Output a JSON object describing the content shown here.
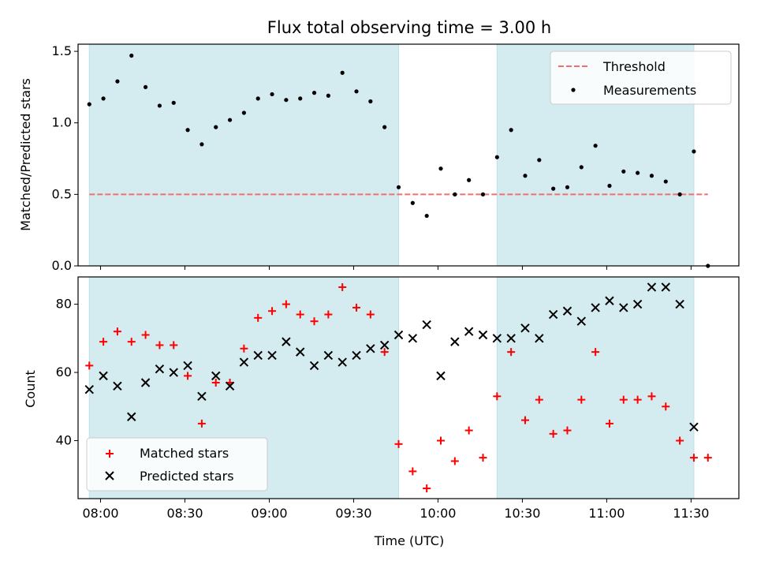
{
  "chart_data": [
    {
      "type": "scatter",
      "title": "Flux total observing time = 3.00 h",
      "xlabel": "",
      "ylabel": "Matched/Predicted stars",
      "xlim": [
        "07:52",
        "11:47"
      ],
      "ylim": [
        0,
        1.55
      ],
      "yticks": [
        "0.0",
        "0.5",
        "1.0",
        "1.5"
      ],
      "legend_position": "top-right",
      "shaded_intervals": [
        [
          "07:56",
          "09:46"
        ],
        [
          "10:21",
          "11:31"
        ]
      ],
      "shade_color": "#d4ebf0",
      "threshold": {
        "name": "Threshold",
        "value": 0.5,
        "x_range": [
          "07:56",
          "11:36"
        ],
        "color": "#f07070",
        "style": "dashed"
      },
      "series": [
        {
          "name": "Measurements",
          "color": "#000000",
          "marker": "dot",
          "x": [
            "07:56",
            "08:01",
            "08:06",
            "08:11",
            "08:16",
            "08:21",
            "08:26",
            "08:31",
            "08:36",
            "08:41",
            "08:46",
            "08:51",
            "08:56",
            "09:01",
            "09:06",
            "09:11",
            "09:16",
            "09:21",
            "09:26",
            "09:31",
            "09:36",
            "09:41",
            "09:46",
            "09:51",
            "09:56",
            "10:01",
            "10:06",
            "10:11",
            "10:16",
            "10:21",
            "10:26",
            "10:31",
            "10:36",
            "10:41",
            "10:46",
            "10:51",
            "10:56",
            "11:01",
            "11:06",
            "11:11",
            "11:16",
            "11:21",
            "11:26",
            "11:31",
            "11:36"
          ],
          "y": [
            1.13,
            1.17,
            1.29,
            1.47,
            1.25,
            1.12,
            1.14,
            0.95,
            0.85,
            0.97,
            1.02,
            1.07,
            1.17,
            1.2,
            1.16,
            1.17,
            1.21,
            1.19,
            1.35,
            1.22,
            1.15,
            0.97,
            0.55,
            0.44,
            0.35,
            0.68,
            0.5,
            0.6,
            0.5,
            0.76,
            0.95,
            0.63,
            0.74,
            0.54,
            0.55,
            0.69,
            0.84,
            0.56,
            0.66,
            0.65,
            0.63,
            0.59,
            0.5,
            0.8,
            0.0
          ]
        }
      ]
    },
    {
      "type": "scatter",
      "title": "",
      "xlabel": "Time (UTC)",
      "ylabel": "Count",
      "xlim": [
        "07:52",
        "11:47"
      ],
      "ylim": [
        23,
        88
      ],
      "xticks": [
        "08:00",
        "08:30",
        "09:00",
        "09:30",
        "10:00",
        "10:30",
        "11:00",
        "11:30"
      ],
      "yticks": [
        "40",
        "60",
        "80"
      ],
      "legend_position": "bottom-left",
      "shaded_intervals": [
        [
          "07:56",
          "09:46"
        ],
        [
          "10:21",
          "11:31"
        ]
      ],
      "shade_color": "#d4ebf0",
      "series": [
        {
          "name": "Matched stars",
          "color": "#ff0000",
          "marker": "plus",
          "x": [
            "07:56",
            "08:01",
            "08:06",
            "08:11",
            "08:16",
            "08:21",
            "08:26",
            "08:31",
            "08:36",
            "08:41",
            "08:46",
            "08:51",
            "08:56",
            "09:01",
            "09:06",
            "09:11",
            "09:16",
            "09:21",
            "09:26",
            "09:31",
            "09:36",
            "09:41",
            "09:46",
            "09:51",
            "09:56",
            "10:01",
            "10:06",
            "10:11",
            "10:16",
            "10:21",
            "10:26",
            "10:31",
            "10:36",
            "10:41",
            "10:46",
            "10:51",
            "10:56",
            "11:01",
            "11:06",
            "11:11",
            "11:16",
            "11:21",
            "11:26",
            "11:31",
            "11:36"
          ],
          "y": [
            62,
            69,
            72,
            69,
            71,
            68,
            68,
            59,
            45,
            57,
            57,
            67,
            76,
            78,
            80,
            77,
            75,
            77,
            85,
            79,
            77,
            66,
            39,
            31,
            26,
            40,
            34,
            43,
            35,
            53,
            66,
            46,
            52,
            42,
            43,
            52,
            66,
            45,
            52,
            52,
            53,
            50,
            40,
            35,
            35
          ]
        },
        {
          "name": "Predicted stars",
          "color": "#000000",
          "marker": "x",
          "x": [
            "07:56",
            "08:01",
            "08:06",
            "08:11",
            "08:16",
            "08:21",
            "08:26",
            "08:31",
            "08:36",
            "08:41",
            "08:46",
            "08:51",
            "08:56",
            "09:01",
            "09:06",
            "09:11",
            "09:16",
            "09:21",
            "09:26",
            "09:31",
            "09:36",
            "09:41",
            "09:46",
            "09:51",
            "09:56",
            "10:01",
            "10:06",
            "10:11",
            "10:16",
            "10:21",
            "10:26",
            "10:31",
            "10:36",
            "10:41",
            "10:46",
            "10:51",
            "10:56",
            "11:01",
            "11:06",
            "11:11",
            "11:16",
            "11:21",
            "11:26",
            "11:31"
          ],
          "y": [
            55,
            59,
            56,
            47,
            57,
            61,
            60,
            62,
            53,
            59,
            56,
            63,
            65,
            65,
            69,
            66,
            62,
            65,
            63,
            65,
            67,
            68,
            71,
            70,
            74,
            59,
            69,
            72,
            71,
            70,
            70,
            73,
            70,
            77,
            78,
            75,
            79,
            81,
            79,
            80,
            85,
            85,
            80,
            44
          ]
        }
      ]
    }
  ]
}
